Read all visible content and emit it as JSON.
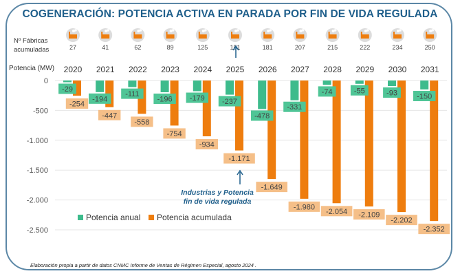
{
  "title": "COGENERACIÓN: POTENCIA ACTIVA EN PARADA POR FIN DE VIDA REGULADA",
  "row_labels": {
    "factories_line1": "Nº Fábricas",
    "factories_line2": "acumuladas",
    "power": "Potencia (MW)"
  },
  "factory_icon": "factory-icon",
  "colors": {
    "annual": "#3dbb8c",
    "annual_label_bg": "#4fc596",
    "cumulative": "#ee7d0e",
    "cumulative_label_bg": "#f5bf88",
    "title": "#1f5f8b",
    "frame": "#5b87a6",
    "grid": "#e6e6e6"
  },
  "annotation": {
    "line1": "Industrias y Potencia",
    "line2": "fin de vida regulada"
  },
  "source": "Elaboración propia a partir de datos CNMC Informe de Ventas de Régimen Especial, agosto 2024 .",
  "chart_data": {
    "type": "bar",
    "title": "COGENERACIÓN: POTENCIA ACTIVA EN PARADA POR FIN DE VIDA REGULADA",
    "xlabel": "",
    "ylabel": "Potencia (MW)",
    "categories": [
      "2020",
      "2021",
      "2022",
      "2023",
      "2024",
      "2025",
      "2026",
      "2027",
      "2028",
      "2029",
      "2030",
      "2031"
    ],
    "factories_cumulative": [
      27,
      41,
      62,
      89,
      125,
      151,
      181,
      207,
      215,
      222,
      234,
      250
    ],
    "series": [
      {
        "name": "Potencia anual",
        "values": [
          -29,
          -194,
          -111,
          -196,
          -179,
          -237,
          -478,
          -331,
          -74,
          -55,
          -93,
          -150
        ],
        "labels": [
          "-29",
          "-194",
          "-111",
          "-196",
          "-179",
          "-237",
          "-478",
          "-331",
          "-74",
          "-55",
          "-93",
          "-150"
        ]
      },
      {
        "name": "Potencia acumulada",
        "values": [
          -254,
          -447,
          -558,
          -754,
          -934,
          -1171,
          -1649,
          -1980,
          -2054,
          -2109,
          -2202,
          -2352
        ],
        "labels": [
          "-254",
          "-447",
          "-558",
          "-754",
          "-934",
          "-1.171",
          "-1.649",
          "-1.980",
          "-2.054",
          "-2.109",
          "-2.202",
          "-2.352"
        ]
      }
    ],
    "yticks": [
      0,
      -500,
      -1000,
      -1500,
      -2000,
      -2500
    ],
    "ytick_labels": [
      "0",
      "-500",
      "-1.000",
      "-1.500",
      "-2.000",
      "-2.500"
    ],
    "ylim": [
      -2800,
      0
    ],
    "grid": true,
    "legend": "bottom-left inside plot",
    "highlight_category": "2025"
  }
}
